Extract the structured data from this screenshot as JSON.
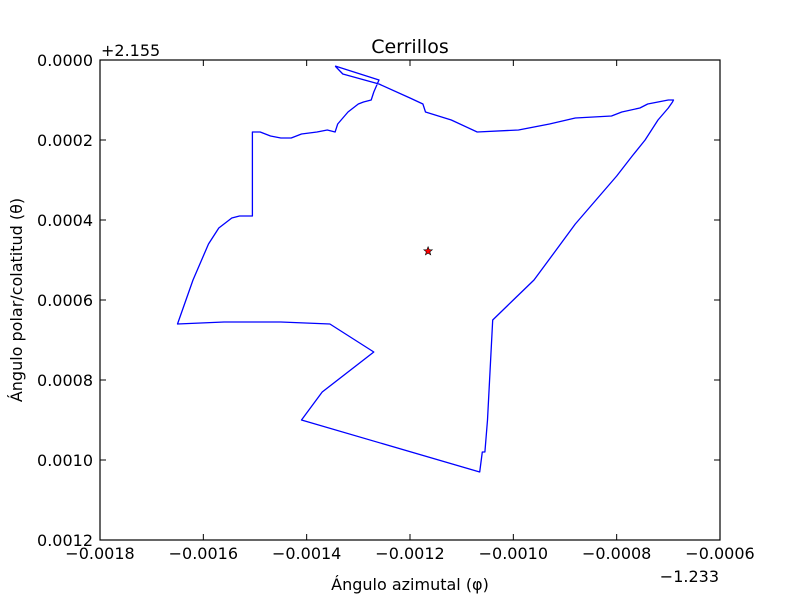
{
  "chart_data": {
    "type": "line",
    "title": "Cerrillos",
    "xlabel": "Ángulo azimutal (φ)",
    "ylabel": "Ángulo polar/colatitud (θ)",
    "x_offset_label": "−1.233",
    "y_offset_label": "+2.155",
    "xlim": [
      -0.0018,
      -0.0006
    ],
    "ylim": [
      0.0012,
      0.0
    ],
    "y_inverted": true,
    "grid": false,
    "x_ticks": [
      -0.0018,
      -0.0016,
      -0.0014,
      -0.0012,
      -0.001,
      -0.0008,
      -0.0006
    ],
    "x_tick_labels": [
      "−0.0018",
      "−0.0016",
      "−0.0014",
      "−0.0012",
      "−0.0010",
      "−0.0008",
      "−0.0006"
    ],
    "y_ticks": [
      0.0,
      0.0002,
      0.0004,
      0.0006,
      0.0008,
      0.001,
      0.0012
    ],
    "y_tick_labels": [
      "0.0000",
      "0.0002",
      "0.0004",
      "0.0006",
      "0.0008",
      "0.0010",
      "0.0012"
    ],
    "series": [
      {
        "color": "#0000ff",
        "x": [
          -0.001345,
          -0.00133,
          -0.00126,
          -0.0012,
          -0.001175,
          -0.00117,
          -0.00112,
          -0.00107,
          -0.00099,
          -0.00093,
          -0.00088,
          -0.00081,
          -0.00079,
          -0.000755,
          -0.00074,
          -0.0007,
          -0.00069,
          -0.000692,
          -0.0007,
          -0.00072,
          -0.000745,
          -0.00077,
          -0.0008,
          -0.00084,
          -0.00088,
          -0.00092,
          -0.00096,
          -0.001,
          -0.00104,
          -0.00105,
          -0.001055,
          -0.00106,
          -0.001065,
          -0.00141,
          -0.00137,
          -0.00127,
          -0.001355,
          -0.00145,
          -0.00156,
          -0.00165,
          -0.00162,
          -0.00159,
          -0.00157,
          -0.001555,
          -0.001545,
          -0.00153,
          -0.001505,
          -0.001505,
          -0.00149,
          -0.00147,
          -0.00145,
          -0.00143,
          -0.00141,
          -0.00138,
          -0.00136,
          -0.001345,
          -0.00134,
          -0.00132,
          -0.0013,
          -0.00129,
          -0.001275,
          -0.00127,
          -0.00126,
          -0.001345
        ],
        "y": [
          1.5e-05,
          3.5e-05,
          6e-05,
          9.5e-05,
          0.00011,
          0.00013,
          0.00015,
          0.00018,
          0.000175,
          0.00016,
          0.000145,
          0.00014,
          0.00013,
          0.00012,
          0.00011,
          0.0001,
          0.0001,
          0.000105,
          0.00012,
          0.00015,
          0.0002,
          0.00024,
          0.00029,
          0.00035,
          0.00041,
          0.00048,
          0.00055,
          0.0006,
          0.00065,
          0.0009,
          0.00098,
          0.00098,
          0.00103,
          0.0009,
          0.00083,
          0.00073,
          0.00066,
          0.000655,
          0.000655,
          0.00066,
          0.00055,
          0.00046,
          0.00042,
          0.000405,
          0.000395,
          0.00039,
          0.00039,
          0.00018,
          0.00018,
          0.00019,
          0.000195,
          0.000195,
          0.000185,
          0.00018,
          0.000175,
          0.00018,
          0.00016,
          0.00013,
          0.00011,
          0.000105,
          0.0001,
          8e-05,
          5e-05,
          1.5e-05
        ]
      }
    ],
    "marker": {
      "x": -0.001165,
      "y": 0.000478,
      "symbol": "star",
      "color": "#ff0000"
    }
  }
}
